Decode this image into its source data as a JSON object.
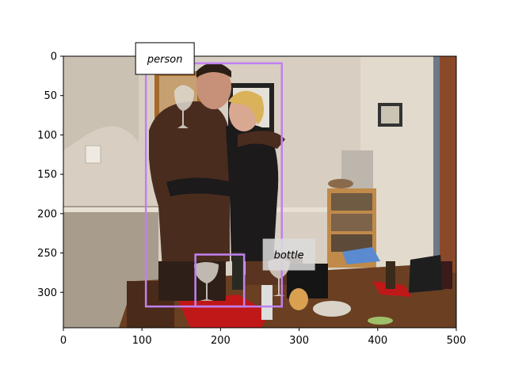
{
  "chart_data": {
    "type": "image-annotation",
    "xlim": [
      0,
      500
    ],
    "ylim": [
      345,
      0
    ],
    "x_ticks": [
      0,
      100,
      200,
      300,
      400,
      500
    ],
    "y_ticks": [
      0,
      50,
      100,
      150,
      200,
      250,
      300
    ],
    "annotations": [
      {
        "label": "person",
        "bbox_data": {
          "x0": 105,
          "y0": 9,
          "x1": 278,
          "y1": 318
        },
        "color": "#c080f0"
      },
      {
        "label": "bottle",
        "bbox_data": {
          "x0": 168,
          "y0": 252,
          "x1": 230,
          "y1": 318
        },
        "color": "#c080f0"
      }
    ]
  },
  "colors": {
    "wall": "#d8cfc2",
    "floor_shadow": "#6b5a49",
    "table": "#6a3f22",
    "jacket": "#4a2c1f",
    "coat_black": "#1c1a1a",
    "hair_blonde": "#d9b25a",
    "skin": "#d9a890",
    "door": "#8a4a2a",
    "shelf": "#c08a4a",
    "red_cloth": "#c01818"
  }
}
